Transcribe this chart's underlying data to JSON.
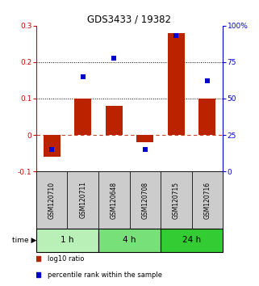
{
  "title": "GDS3433 / 19382",
  "samples": [
    "GSM120710",
    "GSM120711",
    "GSM120648",
    "GSM120708",
    "GSM120715",
    "GSM120716"
  ],
  "log10_ratio": [
    -0.06,
    0.1,
    0.08,
    -0.02,
    0.28,
    0.1
  ],
  "percentile_rank": [
    15,
    65,
    78,
    15,
    93,
    62
  ],
  "groups": [
    {
      "label": "1 h",
      "start": 0,
      "end": 2,
      "color": "#b8f0b8"
    },
    {
      "label": "4 h",
      "start": 2,
      "end": 4,
      "color": "#78e078"
    },
    {
      "label": "24 h",
      "start": 4,
      "end": 6,
      "color": "#33cc33"
    }
  ],
  "bar_color": "#bb2200",
  "dot_color": "#0000cc",
  "ylim_left": [
    -0.1,
    0.3
  ],
  "ylim_right": [
    0,
    100
  ],
  "yticks_left": [
    -0.1,
    0.0,
    0.1,
    0.2,
    0.3
  ],
  "yticks_right": [
    0,
    25,
    50,
    75,
    100
  ],
  "ytick_labels_left": [
    "-0.1",
    "0",
    "0.1",
    "0.2",
    "0.3"
  ],
  "ytick_labels_right": [
    "0",
    "25",
    "50",
    "75",
    "100%"
  ],
  "hlines_dotted": [
    0.1,
    0.2
  ],
  "hline_dashed": 0.0,
  "legend_items": [
    {
      "label": "log10 ratio",
      "color": "#bb2200"
    },
    {
      "label": "percentile rank within the sample",
      "color": "#0000cc"
    }
  ],
  "time_label": "time",
  "label_color_left": "#cc0000",
  "label_color_right": "#0000cc",
  "bar_width": 0.55,
  "dot_size": 22,
  "sample_box_color": "#cccccc"
}
